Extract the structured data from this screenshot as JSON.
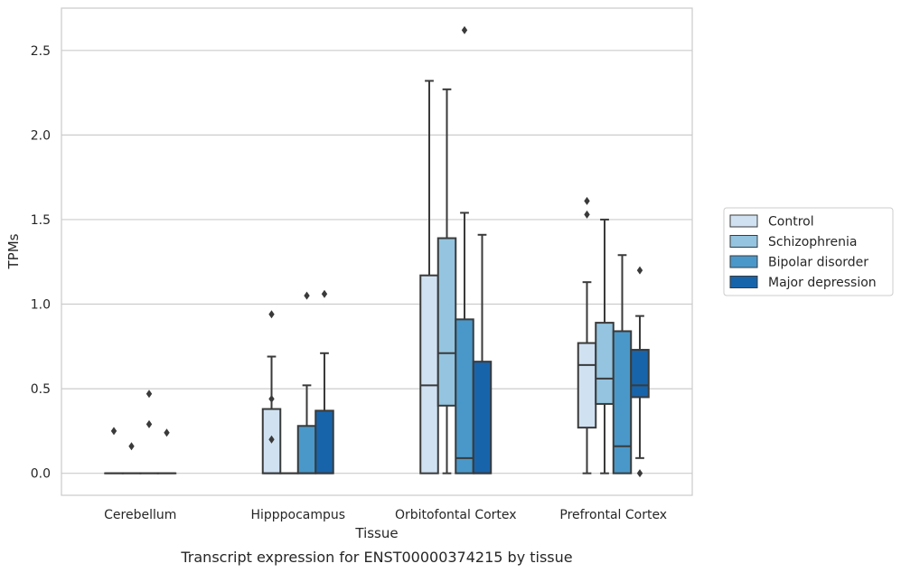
{
  "chart_data": {
    "type": "box",
    "title": "",
    "caption": "Transcript expression for ENST00000374215 by tissue",
    "xlabel": "Tissue",
    "ylabel": "TPMs",
    "ylim": [
      -0.13,
      2.75
    ],
    "yticks": [
      "0.0",
      "0.5",
      "1.0",
      "1.5",
      "2.0",
      "2.5"
    ],
    "categories": [
      "Cerebellum",
      "Hipppocampus",
      "Orbitofontal Cortex",
      "Prefrontal Cortex"
    ],
    "grid": true,
    "legend_position": "right",
    "series": [
      {
        "name": "Control",
        "color": "#d0e1f2",
        "boxes": [
          {
            "q1": 0,
            "median": 0,
            "q3": 0,
            "whisker_low": 0,
            "whisker_high": 0,
            "outliers": [
              0.25
            ]
          },
          {
            "q1": 0,
            "median": 0,
            "q3": 0.38,
            "whisker_low": 0,
            "whisker_high": 0.69,
            "outliers": [
              0.94,
              0.44,
              0.2
            ]
          },
          {
            "q1": 0,
            "median": 0.52,
            "q3": 1.17,
            "whisker_low": 0,
            "whisker_high": 2.32,
            "outliers": []
          },
          {
            "q1": 0.27,
            "median": 0.64,
            "q3": 0.77,
            "whisker_low": 0,
            "whisker_high": 1.13,
            "outliers": [
              1.61,
              1.53
            ]
          }
        ]
      },
      {
        "name": "Schizophrenia",
        "color": "#94c4df",
        "boxes": [
          {
            "q1": 0,
            "median": 0,
            "q3": 0,
            "whisker_low": 0,
            "whisker_high": 0,
            "outliers": [
              0.16
            ]
          },
          {
            "q1": 0,
            "median": 0,
            "q3": 0,
            "whisker_low": 0,
            "whisker_high": 0,
            "outliers": []
          },
          {
            "q1": 0.4,
            "median": 0.71,
            "q3": 1.39,
            "whisker_low": 0,
            "whisker_high": 2.27,
            "outliers": []
          },
          {
            "q1": 0.41,
            "median": 0.56,
            "q3": 0.89,
            "whisker_low": 0,
            "whisker_high": 1.5,
            "outliers": []
          }
        ]
      },
      {
        "name": "Bipolar disorder",
        "color": "#4a98c9",
        "boxes": [
          {
            "q1": 0,
            "median": 0,
            "q3": 0,
            "whisker_low": 0,
            "whisker_high": 0,
            "outliers": [
              0.47,
              0.29
            ]
          },
          {
            "q1": 0,
            "median": 0,
            "q3": 0.28,
            "whisker_low": 0,
            "whisker_high": 0.52,
            "outliers": [
              1.05
            ]
          },
          {
            "q1": 0,
            "median": 0.09,
            "q3": 0.91,
            "whisker_low": 0,
            "whisker_high": 1.54,
            "outliers": [
              2.62
            ]
          },
          {
            "q1": 0,
            "median": 0.16,
            "q3": 0.84,
            "whisker_low": 0,
            "whisker_high": 1.29,
            "outliers": []
          }
        ]
      },
      {
        "name": "Major depression",
        "color": "#1764ab",
        "boxes": [
          {
            "q1": 0,
            "median": 0,
            "q3": 0,
            "whisker_low": 0,
            "whisker_high": 0,
            "outliers": [
              0.24
            ]
          },
          {
            "q1": 0,
            "median": 0,
            "q3": 0.37,
            "whisker_low": 0,
            "whisker_high": 0.71,
            "outliers": [
              1.06
            ]
          },
          {
            "q1": 0,
            "median": 0,
            "q3": 0.66,
            "whisker_low": 0,
            "whisker_high": 1.41,
            "outliers": []
          },
          {
            "q1": 0.45,
            "median": 0.52,
            "q3": 0.73,
            "whisker_low": 0.09,
            "whisker_high": 0.93,
            "outliers": [
              1.2,
              0
            ]
          }
        ]
      }
    ]
  }
}
